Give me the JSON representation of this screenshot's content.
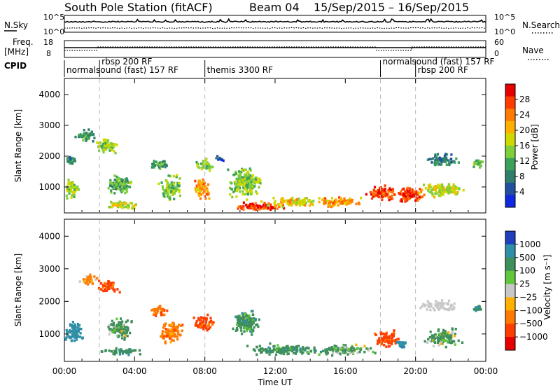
{
  "header": {
    "title": "South Pole Station (fitACF)",
    "beam": "Beam 04",
    "date_range": "15/Sep/2015 – 16/Sep/2015"
  },
  "strips": {
    "nsky": {
      "label": "N.Sky",
      "right_label": "N.Search",
      "ticks_left": [
        "10^5",
        "10^0"
      ],
      "ticks_right": [
        "10^5",
        "10^0"
      ]
    },
    "freq": {
      "label_line1": "Freq.",
      "label_line2": "[MHz]",
      "right_label": "Nave",
      "ticks_left": [
        "18",
        "8"
      ],
      "ticks_right": [
        "60",
        "0"
      ]
    },
    "cpid": {
      "label": "CPID",
      "segments": [
        {
          "text": "normalsound (fast) 157 RF",
          "row": 1,
          "t": 0.0
        },
        {
          "text": "rbsp 200 RF",
          "row": 0,
          "t": 2.0
        },
        {
          "text": "themis 3300 RF",
          "row": 1,
          "t": 8.0
        },
        {
          "text": "normalsound (fast) 157 RF",
          "row": 0,
          "t": 18.0
        },
        {
          "text": "rbsp 200 RF",
          "row": 1,
          "t": 20.0
        }
      ]
    }
  },
  "axes": {
    "ylabel": "Slant Range [km]",
    "xlabel": "Time UT",
    "yticks": [
      "4000",
      "3000",
      "2000",
      "1000"
    ],
    "xticks": [
      "00:00",
      "04:00",
      "08:00",
      "12:00",
      "16:00",
      "20:00",
      "00:00"
    ]
  },
  "colorbars": {
    "power": {
      "label": "Power [dB]",
      "ticks": [
        "28",
        "24",
        "20",
        "16",
        "12",
        "8",
        "4"
      ],
      "colors": [
        "#e60000",
        "#ff3c00",
        "#ff7a00",
        "#ffb000",
        "#cfd800",
        "#7fcf3a",
        "#3aa15a",
        "#2f7f6a",
        "#234fa0",
        "#1028e0"
      ]
    },
    "velocity": {
      "label": "Velocity [m s⁻¹]",
      "ticks": [
        "1000",
        "500",
        "100",
        "25",
        "−25",
        "−100",
        "−500",
        "−1000"
      ],
      "colors": [
        "#1f3fbf",
        "#2f8fa6",
        "#3f8f5a",
        "#62c83a",
        "#c8c8c8",
        "#ffb000",
        "#ff7a00",
        "#ff3c00",
        "#e60000"
      ]
    }
  },
  "chart_data": [
    {
      "type": "heatmap",
      "name": "Power",
      "title": "South Pole Station (fitACF) Beam 04 15/Sep/2015 – 16/Sep/2015",
      "xlabel": "Time UT",
      "ylabel": "Slant Range [km]",
      "xlim_hours": [
        0,
        24
      ],
      "ylim": [
        180,
        4500
      ],
      "x_ticks": [
        "00:00",
        "04:00",
        "08:00",
        "12:00",
        "16:00",
        "20:00",
        "00:00"
      ],
      "y_ticks": [
        1000,
        2000,
        3000,
        4000
      ],
      "colorbar_range": [
        0,
        30
      ],
      "colorbar_ticks": [
        4,
        8,
        12,
        16,
        20,
        24,
        28
      ],
      "blobs": [
        {
          "t": 0.4,
          "r": 1000,
          "dt": 0.7,
          "dr": 500,
          "level": 14
        },
        {
          "t": 0.3,
          "r": 1900,
          "dt": 0.5,
          "dr": 250,
          "level": 8
        },
        {
          "t": 1.2,
          "r": 2700,
          "dt": 0.9,
          "dr": 300,
          "level": 10
        },
        {
          "t": 2.3,
          "r": 2400,
          "dt": 1.0,
          "dr": 400,
          "level": 14
        },
        {
          "t": 3.0,
          "r": 1100,
          "dt": 1.2,
          "dr": 500,
          "level": 12
        },
        {
          "t": 3.2,
          "r": 450,
          "dt": 1.5,
          "dr": 200,
          "level": 16
        },
        {
          "t": 5.3,
          "r": 1750,
          "dt": 0.8,
          "dr": 250,
          "level": 10
        },
        {
          "t": 6.0,
          "r": 1000,
          "dt": 1.0,
          "dr": 600,
          "level": 13
        },
        {
          "t": 7.8,
          "r": 1000,
          "dt": 0.8,
          "dr": 500,
          "level": 21
        },
        {
          "t": 7.9,
          "r": 1750,
          "dt": 0.9,
          "dr": 300,
          "level": 14
        },
        {
          "t": 8.8,
          "r": 1950,
          "dt": 0.4,
          "dr": 150,
          "level": 6
        },
        {
          "t": 10.2,
          "r": 1200,
          "dt": 1.4,
          "dr": 800,
          "level": 14
        },
        {
          "t": 11.2,
          "r": 400,
          "dt": 2.5,
          "dr": 180,
          "level": 26
        },
        {
          "t": 13.0,
          "r": 550,
          "dt": 2.5,
          "dr": 250,
          "level": 18
        },
        {
          "t": 15.5,
          "r": 550,
          "dt": 2.0,
          "dr": 250,
          "level": 21
        },
        {
          "t": 18.0,
          "r": 850,
          "dt": 1.2,
          "dr": 400,
          "level": 25
        },
        {
          "t": 19.5,
          "r": 800,
          "dt": 1.5,
          "dr": 400,
          "level": 26
        },
        {
          "t": 21.5,
          "r": 950,
          "dt": 1.8,
          "dr": 400,
          "level": 16
        },
        {
          "t": 21.5,
          "r": 1900,
          "dt": 1.5,
          "dr": 300,
          "level": 8
        },
        {
          "t": 23.5,
          "r": 1800,
          "dt": 0.5,
          "dr": 250,
          "level": 12
        }
      ]
    },
    {
      "type": "heatmap",
      "name": "Velocity",
      "xlabel": "Time UT",
      "ylabel": "Slant Range [km]",
      "xlim_hours": [
        0,
        24
      ],
      "ylim": [
        180,
        4500
      ],
      "x_ticks": [
        "00:00",
        "04:00",
        "08:00",
        "12:00",
        "16:00",
        "20:00",
        "00:00"
      ],
      "y_ticks": [
        1000,
        2000,
        3000,
        4000
      ],
      "colorbar_ticks": [
        1000,
        500,
        100,
        25,
        -25,
        -100,
        -500,
        -1000
      ],
      "blobs": [
        {
          "t": 0.5,
          "r": 1100,
          "dt": 0.8,
          "dr": 600,
          "level": 800
        },
        {
          "t": 1.3,
          "r": 2700,
          "dt": 0.8,
          "dr": 250,
          "level": -200
        },
        {
          "t": 2.4,
          "r": 2500,
          "dt": 1.0,
          "dr": 300,
          "level": -600
        },
        {
          "t": 3.1,
          "r": 1200,
          "dt": 1.2,
          "dr": 500,
          "level": 200
        },
        {
          "t": 3.2,
          "r": 500,
          "dt": 1.5,
          "dr": 180,
          "level": 300
        },
        {
          "t": 5.3,
          "r": 1750,
          "dt": 0.8,
          "dr": 250,
          "level": -400
        },
        {
          "t": 6.0,
          "r": 1100,
          "dt": 1.0,
          "dr": 500,
          "level": -300
        },
        {
          "t": 7.9,
          "r": 1400,
          "dt": 0.9,
          "dr": 400,
          "level": -700
        },
        {
          "t": 10.3,
          "r": 1400,
          "dt": 1.2,
          "dr": 700,
          "level": 300
        },
        {
          "t": 12.5,
          "r": 550,
          "dt": 3.5,
          "dr": 250,
          "level": 300
        },
        {
          "t": 16.0,
          "r": 550,
          "dt": 2.5,
          "dr": 250,
          "level": 200
        },
        {
          "t": 18.3,
          "r": 900,
          "dt": 1.2,
          "dr": 400,
          "level": -600
        },
        {
          "t": 19.2,
          "r": 700,
          "dt": 0.6,
          "dr": 200,
          "level": 800
        },
        {
          "t": 21.5,
          "r": 900,
          "dt": 1.8,
          "dr": 400,
          "level": 200
        },
        {
          "t": 21.3,
          "r": 1900,
          "dt": 1.5,
          "dr": 250,
          "level": 0
        },
        {
          "t": 23.5,
          "r": 1800,
          "dt": 0.5,
          "dr": 250,
          "level": 400
        }
      ]
    }
  ]
}
